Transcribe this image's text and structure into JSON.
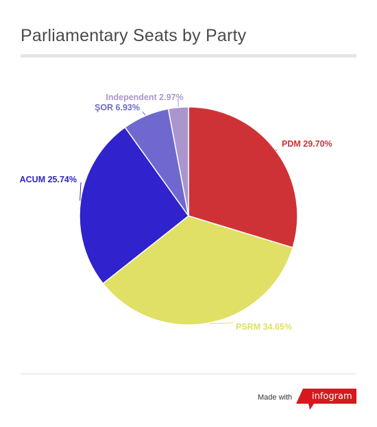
{
  "chart_data": {
    "type": "pie",
    "title": "Parliamentary Seats by Party",
    "start": "12 o'clock, clockwise",
    "slices": [
      {
        "name": "PDM",
        "value": 29.7,
        "label": "PDM 29.70%",
        "color": "#cf3236"
      },
      {
        "name": "PSRM",
        "value": 34.65,
        "label": "PSRM 34.65%",
        "color": "#dfe065"
      },
      {
        "name": "ACUM",
        "value": 25.74,
        "label": "ACUM 25.74%",
        "color": "#3022cc"
      },
      {
        "name": "ŞOR",
        "value": 6.93,
        "label": "ŞOR 6.93%",
        "color": "#6f69cf"
      },
      {
        "name": "Independent",
        "value": 2.97,
        "label": "Independent 2.97%",
        "color": "#ab95ce"
      }
    ]
  },
  "footer": {
    "made_with": "Made with",
    "brand": "infogram",
    "brand_color": "#d7181f"
  }
}
